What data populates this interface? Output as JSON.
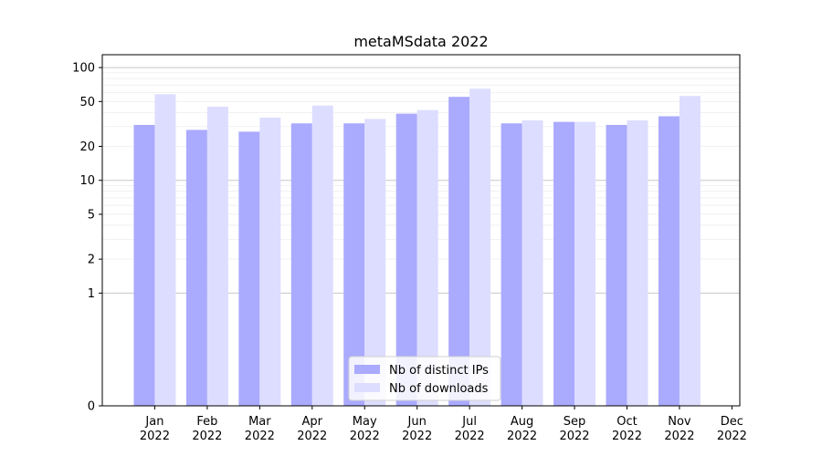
{
  "chart_data": {
    "type": "bar",
    "title": "metaMSdata 2022",
    "xlabel": "",
    "ylabel": "",
    "yscale": "symlog",
    "ylim": [
      0,
      130
    ],
    "yticks": [
      0,
      1,
      2,
      5,
      10,
      20,
      50,
      100
    ],
    "categories": [
      "Jan\n2022",
      "Feb\n2022",
      "Mar\n2022",
      "Apr\n2022",
      "May\n2022",
      "Jun\n2022",
      "Jul\n2022",
      "Aug\n2022",
      "Sep\n2022",
      "Oct\n2022",
      "Nov\n2022",
      "Dec\n2022"
    ],
    "series": [
      {
        "name": "Nb of distinct IPs",
        "color": "#aaaaff",
        "values": [
          31,
          28,
          27,
          32,
          32,
          39,
          55,
          32,
          33,
          31,
          37,
          0
        ]
      },
      {
        "name": "Nb of downloads",
        "color": "#ddddff",
        "values": [
          58,
          45,
          36,
          46,
          35,
          42,
          65,
          34,
          33,
          34,
          56,
          0
        ]
      }
    ],
    "grid": true,
    "legend_position": "lower center"
  }
}
